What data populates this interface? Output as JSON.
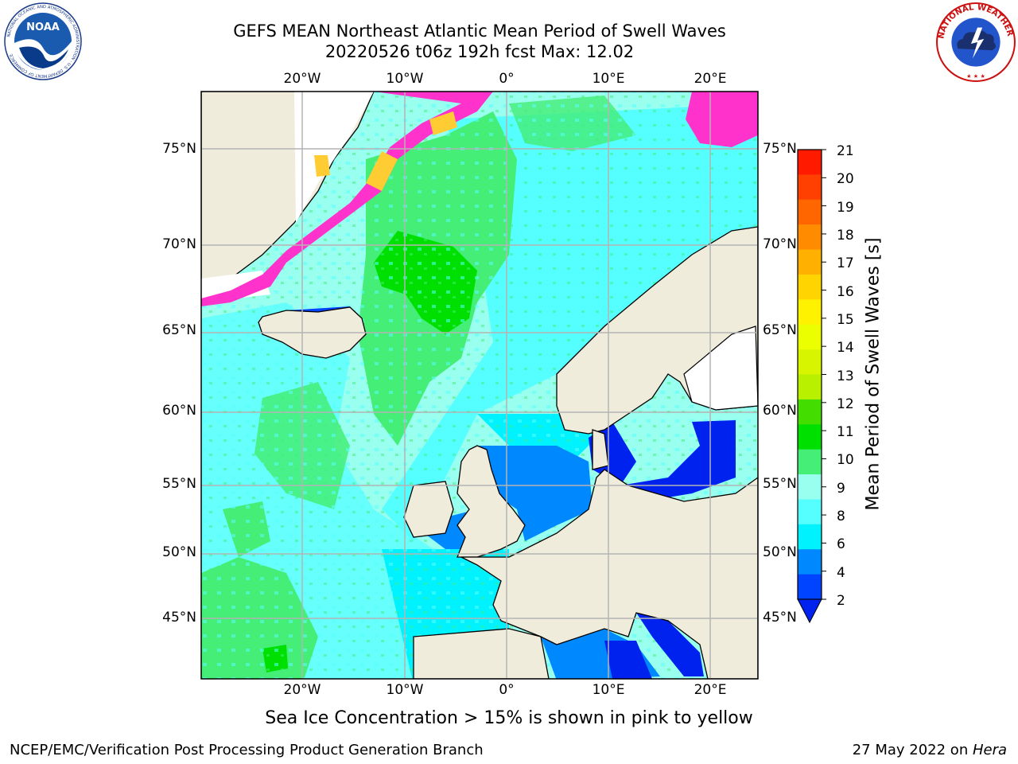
{
  "header": {
    "title_line1": "GEFS MEAN Northeast Atlantic Mean Period of Swell Waves",
    "title_line2": "20220526 t06z 192h fcst   Max: 12.02"
  },
  "logos": {
    "left": {
      "name": "NOAA",
      "ring_text": "NATIONAL OCEANIC AND ATMOSPHERIC ADMINISTRATION · U.S. DEPARTMENT OF COMMERCE"
    },
    "right": {
      "name": "NATIONAL WEATHER SERVICE"
    }
  },
  "map": {
    "projection": "Polar Stereographic",
    "lon_labels_top": [
      "20°W",
      "10°W",
      "0°",
      "10°E",
      "20°E"
    ],
    "lon_labels_bottom": [
      "20°W",
      "10°W",
      "0°",
      "10°E",
      "20°E"
    ],
    "lat_labels": [
      "75°N",
      "70°N",
      "65°N",
      "60°N",
      "55°N",
      "50°N",
      "45°N"
    ],
    "land_color": "#efecdc",
    "grid_color": "#b4b4b4",
    "ice_note_colors": [
      "#ff33cc",
      "#ffcc33"
    ]
  },
  "colorbar": {
    "label": "Mean Period of Swell Waves [s]",
    "ticks": [
      "21",
      "20",
      "19",
      "18",
      "17",
      "16",
      "15",
      "14",
      "13",
      "12",
      "11",
      "10",
      "9",
      "8",
      "6",
      "4",
      "2"
    ],
    "colors_top_to_bottom": [
      "#ff1a00",
      "#ff4000",
      "#ff6600",
      "#ff8c00",
      "#ffb000",
      "#ffd400",
      "#fff200",
      "#ecff00",
      "#d8f500",
      "#b8f000",
      "#44dd00",
      "#00e000",
      "#44ee77",
      "#99ffee",
      "#55ffff",
      "#00f2ff",
      "#0088ff",
      "#0044ff"
    ],
    "extend_color": "#0022ee"
  },
  "caption": "Sea Ice Concentration > 15% is shown in pink to yellow",
  "footer": {
    "left": "NCEP/EMC/Verification Post Processing Product Generation Branch",
    "right_prefix": "27 May 2022 on ",
    "right_host": "Hera"
  }
}
